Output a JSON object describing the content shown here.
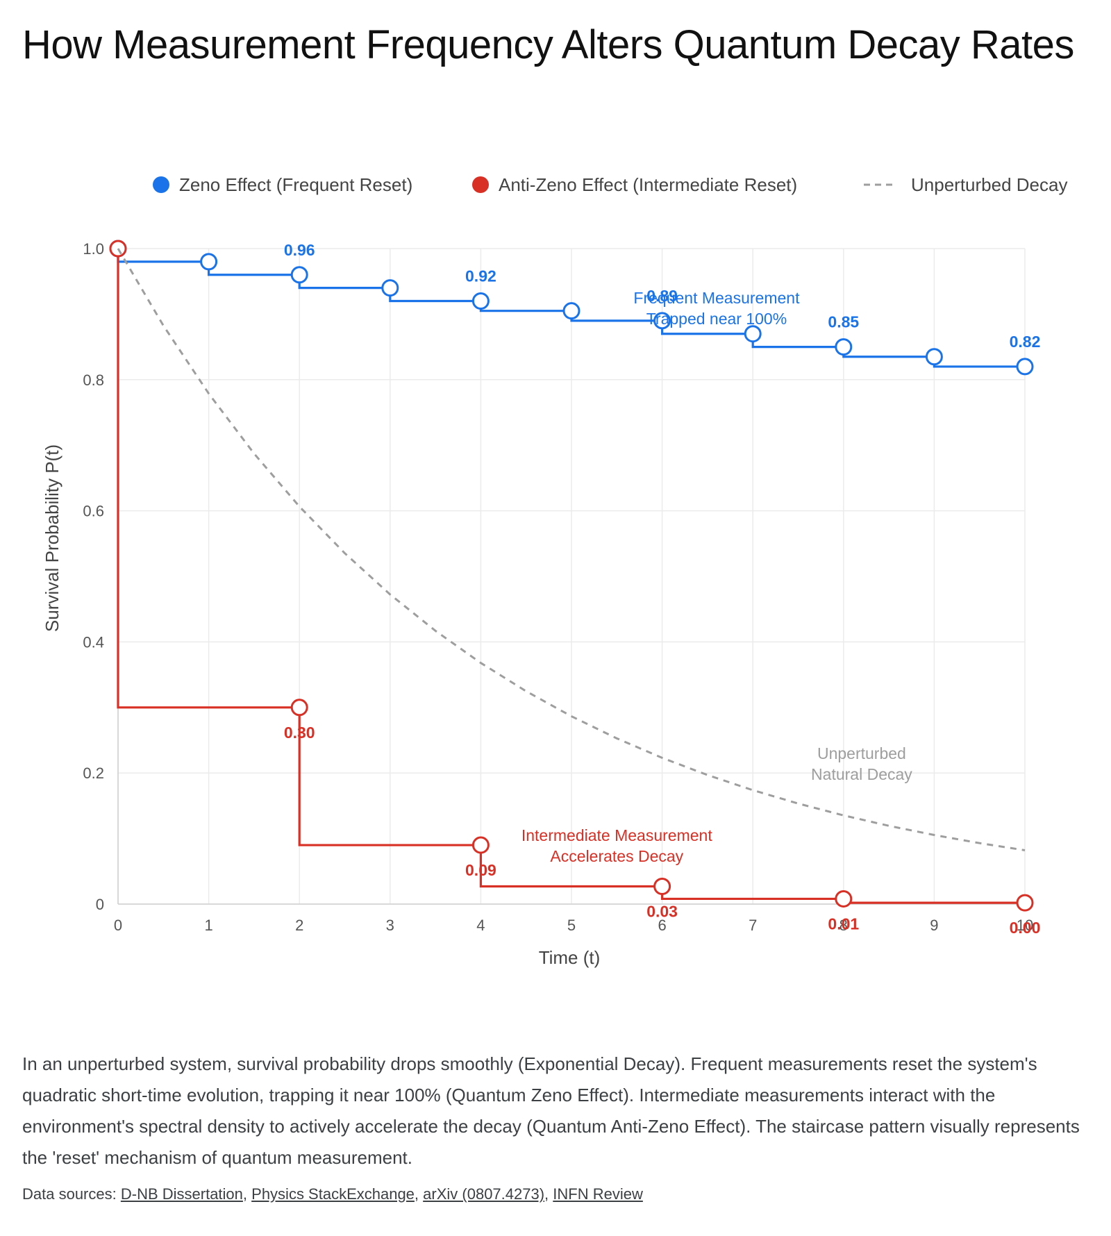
{
  "title": "How Measurement Frequency Alters Quantum Decay Rates",
  "description": "In an unperturbed system, survival probability drops smoothly (Exponential Decay). Frequent measurements reset the system's quadratic short-time evolution, trapping it near 100% (Quantum Zeno Effect). Intermediate measurements interact with the environment's spectral density to actively accelerate the decay (Quantum Anti-Zeno Effect). The staircase pattern visually represents the 'reset' mechanism of quantum measurement.",
  "sources": {
    "label": "Data sources:",
    "links": [
      "D-NB Dissertation",
      "Physics StackExchange",
      "arXiv (0807.4273)",
      "INFN Review"
    ]
  },
  "chart_data": {
    "type": "line",
    "xlabel": "Time (t)",
    "ylabel": "Survival Probability P(t)",
    "xlim": [
      0,
      10
    ],
    "ylim": [
      0,
      1
    ],
    "xticks": [
      0,
      1,
      2,
      3,
      4,
      5,
      6,
      7,
      8,
      9,
      10
    ],
    "yticks": [
      0,
      0.2,
      0.4,
      0.6,
      0.8,
      1.0
    ],
    "ytick_labels": [
      "0",
      "0.2",
      "0.4",
      "0.6",
      "0.8",
      "1.0"
    ],
    "grid": true,
    "legend_position": "top",
    "series": [
      {
        "name": "Zeno Effect (Frequent Reset)",
        "style": "step",
        "color": "#1a73e8",
        "x": [
          0,
          1,
          2,
          3,
          4,
          5,
          6,
          7,
          8,
          9,
          10
        ],
        "y": [
          1.0,
          0.98,
          0.96,
          0.94,
          0.92,
          0.905,
          0.89,
          0.87,
          0.85,
          0.835,
          0.82
        ],
        "labels": [
          null,
          null,
          "0.96",
          null,
          "0.92",
          null,
          "0.89",
          null,
          "0.85",
          null,
          "0.82"
        ]
      },
      {
        "name": "Anti-Zeno Effect (Intermediate Reset)",
        "style": "step",
        "color": "#d93025",
        "x": [
          0,
          2,
          4,
          6,
          8,
          10
        ],
        "y": [
          1.0,
          0.3,
          0.09,
          0.027,
          0.008,
          0.002
        ],
        "labels": [
          null,
          "0.30",
          "0.09",
          "0.03",
          "0.01",
          "0.00"
        ]
      },
      {
        "name": "Unperturbed Decay",
        "style": "dashed",
        "color": "#9e9e9e",
        "x": [
          0,
          0.5,
          1,
          1.5,
          2,
          2.5,
          3,
          3.5,
          4,
          4.5,
          5,
          5.5,
          6,
          6.5,
          7,
          7.5,
          8,
          8.5,
          9,
          9.5,
          10
        ],
        "y": [
          1.0,
          0.8825,
          0.7788,
          0.6873,
          0.6065,
          0.5353,
          0.4724,
          0.4169,
          0.3679,
          0.3247,
          0.2865,
          0.2528,
          0.2231,
          0.1969,
          0.1738,
          0.1534,
          0.1353,
          0.1194,
          0.1054,
          0.093,
          0.0821
        ]
      }
    ],
    "annotations": [
      {
        "text": [
          "Frequent Measurement",
          "Trapped near 100%"
        ],
        "x": 6.6,
        "y": 0.91,
        "color": "#1a73e8"
      },
      {
        "text": [
          "Unperturbed",
          "Natural Decay"
        ],
        "x": 8.2,
        "y": 0.215,
        "color": "#9e9e9e"
      },
      {
        "text": [
          "Intermediate Measurement",
          "Accelerates Decay"
        ],
        "x": 5.5,
        "y": 0.09,
        "color": "#d93025"
      }
    ]
  }
}
